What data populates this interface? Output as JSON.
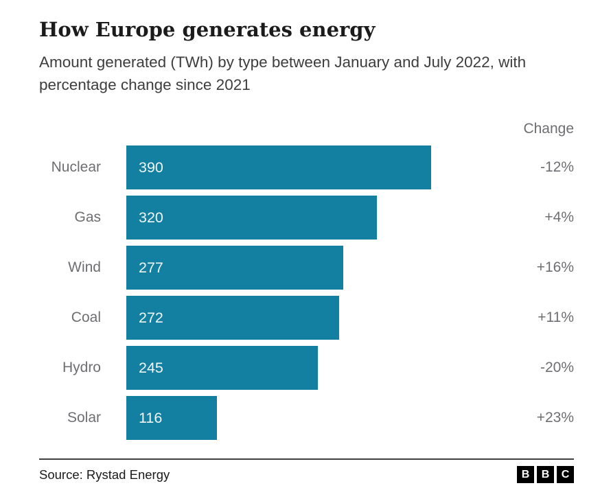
{
  "header": {
    "title": "How Europe generates energy",
    "subtitle": "Amount generated (TWh) by type between January and July 2022, with percentage change since 2021"
  },
  "chart_data": {
    "type": "bar",
    "orientation": "horizontal",
    "title": "How Europe generates energy",
    "subtitle": "Amount generated (TWh) by type between January and July 2022, with percentage change since 2021",
    "value_unit": "TWh",
    "categories": [
      "Nuclear",
      "Gas",
      "Wind",
      "Coal",
      "Hydro",
      "Solar"
    ],
    "values": [
      390,
      320,
      277,
      272,
      245,
      116
    ],
    "changes": [
      "-12%",
      "+4%",
      "+16%",
      "+11%",
      "-20%",
      "+23%"
    ],
    "change_header": "Change",
    "xlim": [
      0,
      480
    ],
    "grid": false,
    "legend": "none",
    "bar_color": "#1380A1",
    "label_color": "#6e6e72",
    "value_label_color": "#f1f6f8"
  },
  "footer": {
    "source": "Source: Rystad Energy",
    "logo_letters": [
      "B",
      "B",
      "C"
    ]
  }
}
